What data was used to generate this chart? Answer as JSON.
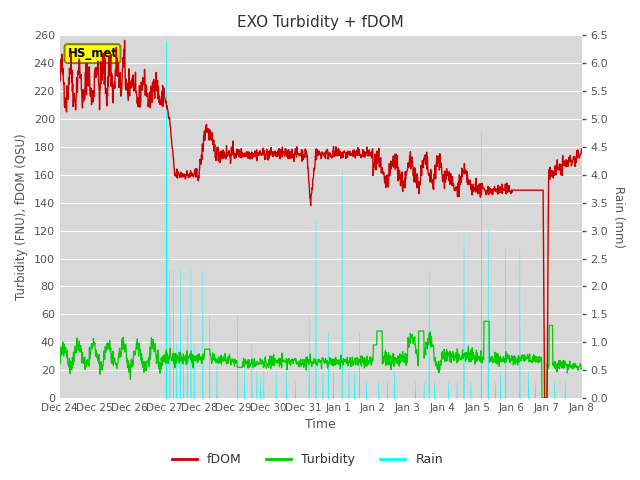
{
  "title": "EXO Turbidity + fDOM",
  "ylabel_left": "Turbidity (FNU), fDOM (QSU)",
  "ylabel_right": "Rain (mm)",
  "xlabel": "Time",
  "ylim_left": [
    0,
    260
  ],
  "ylim_right": [
    0,
    6.5
  ],
  "yticks_left": [
    0,
    20,
    40,
    60,
    80,
    100,
    120,
    140,
    160,
    180,
    200,
    220,
    240,
    260
  ],
  "yticks_right": [
    0.0,
    0.5,
    1.0,
    1.5,
    2.0,
    2.5,
    3.0,
    3.5,
    4.0,
    4.5,
    5.0,
    5.5,
    6.0,
    6.5
  ],
  "xtick_labels": [
    "Dec 24",
    "Dec 25",
    "Dec 26",
    "Dec 27",
    "Dec 28",
    "Dec 29",
    "Dec 30",
    "Dec 31",
    "Jan 1",
    "Jan 2",
    "Jan 3",
    "Jan 4",
    "Jan 5",
    "Jan 6",
    "Jan 7",
    "Jan 8"
  ],
  "outer_bg": "#ffffff",
  "plot_bg_color": "#d8d8d8",
  "fdom_color": "#cc0000",
  "turbidity_color": "#00cc00",
  "rain_color": "#00ffff",
  "legend_label_fdom": "fDOM",
  "legend_label_turbidity": "Turbidity",
  "legend_label_rain": "Rain",
  "annotation_text": "HS_met",
  "annotation_bg": "#ffff00",
  "annotation_border": "#888800",
  "grid_color": "#ffffff",
  "num_days": 15,
  "figsize": [
    6.4,
    4.8
  ],
  "dpi": 100
}
